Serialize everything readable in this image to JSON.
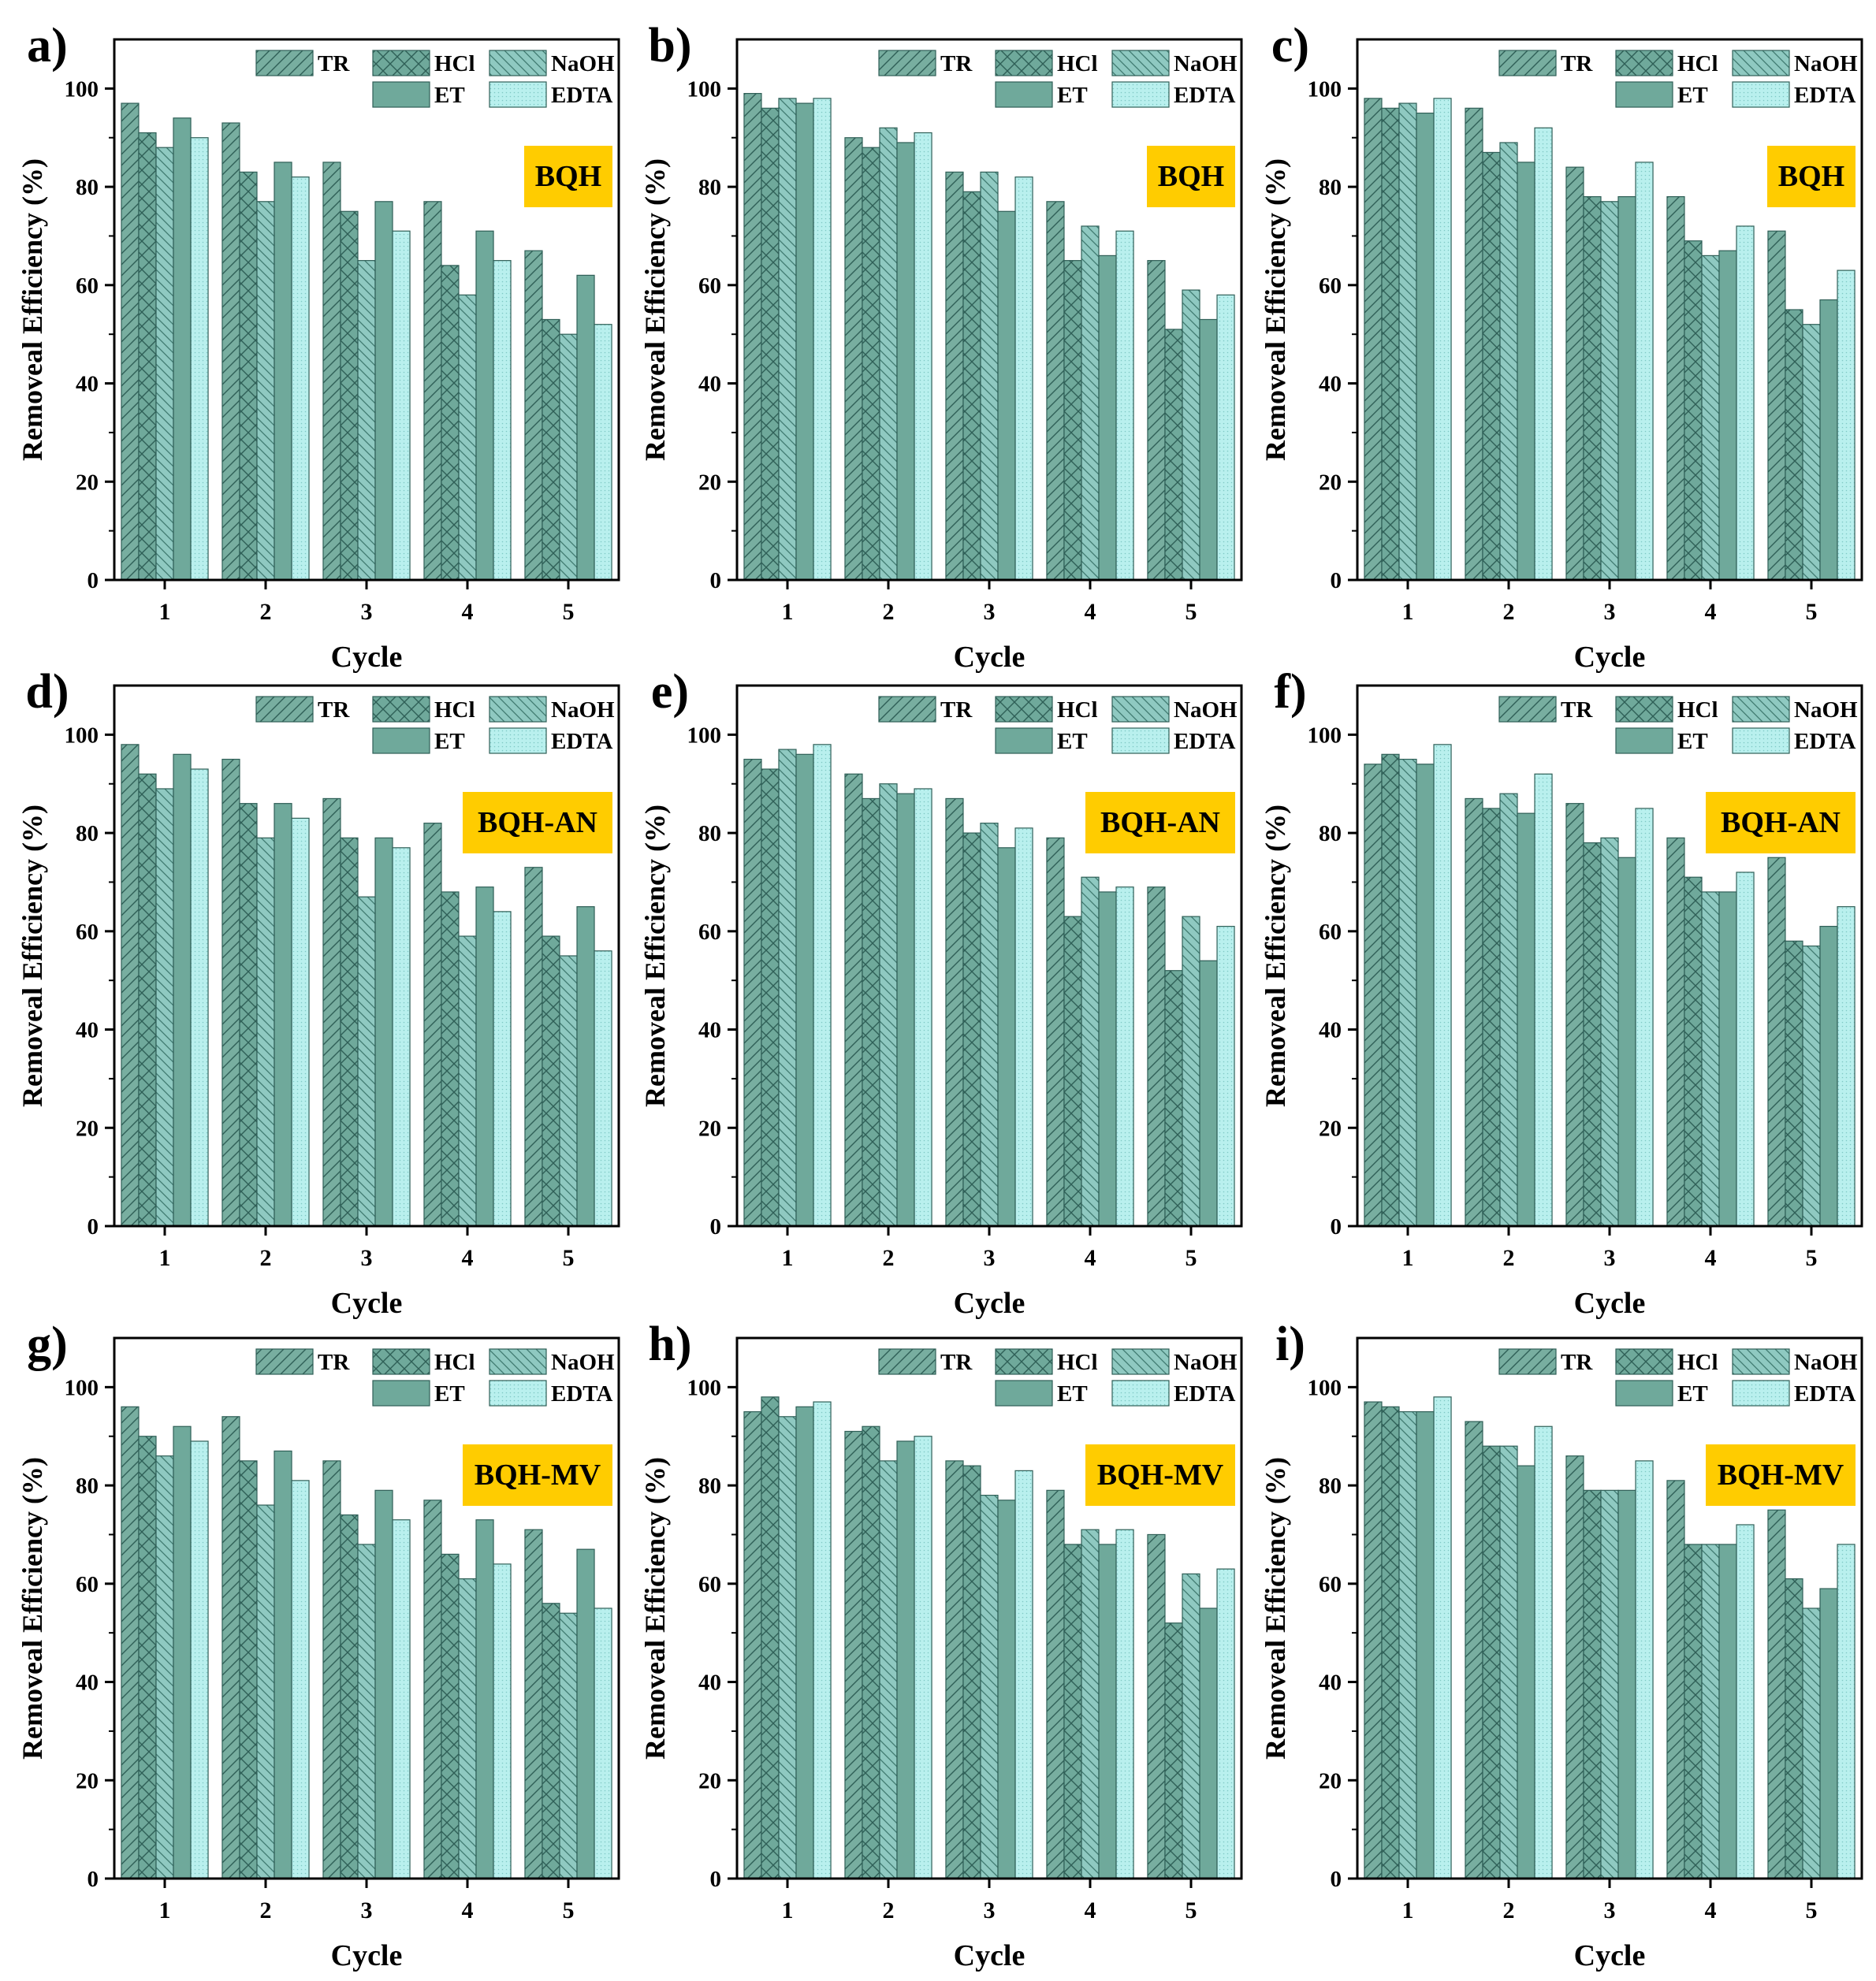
{
  "figure": {
    "series_names": [
      "TR",
      "HCl",
      "NaOH",
      "ET",
      "EDTA"
    ],
    "colors": {
      "TR": "#78aea0",
      "HCl": "#6fa99b",
      "NaOH": "#8fc9c1",
      "ET": "#6fa99b",
      "EDTA": "#b9f0ee",
      "label_box": "#ffcc00",
      "stroke": "#2f5f57"
    }
  },
  "chart_data": [
    {
      "panel_label": "a)",
      "tag": "BQH",
      "type": "bar",
      "xlabel": "Cycle",
      "ylabel": "Removeal Efficiency (%)",
      "ylim": [
        0,
        110
      ],
      "yticks": [
        0,
        20,
        40,
        60,
        80,
        100
      ],
      "categories": [
        "1",
        "2",
        "3",
        "4",
        "5"
      ],
      "series": [
        {
          "name": "TR",
          "values": [
            97,
            93,
            85,
            77,
            67
          ]
        },
        {
          "name": "HCl",
          "values": [
            91,
            83,
            75,
            64,
            53
          ]
        },
        {
          "name": "NaOH",
          "values": [
            88,
            77,
            65,
            58,
            50
          ]
        },
        {
          "name": "ET",
          "values": [
            94,
            85,
            77,
            71,
            62
          ]
        },
        {
          "name": "EDTA",
          "values": [
            90,
            82,
            71,
            65,
            52
          ]
        }
      ]
    },
    {
      "panel_label": "b)",
      "tag": "BQH",
      "type": "bar",
      "xlabel": "Cycle",
      "ylabel": "Removeal Efficiency (%)",
      "ylim": [
        0,
        110
      ],
      "yticks": [
        0,
        20,
        40,
        60,
        80,
        100
      ],
      "categories": [
        "1",
        "2",
        "3",
        "4",
        "5"
      ],
      "series": [
        {
          "name": "TR",
          "values": [
            99,
            90,
            83,
            77,
            65
          ]
        },
        {
          "name": "HCl",
          "values": [
            96,
            88,
            79,
            65,
            51
          ]
        },
        {
          "name": "NaOH",
          "values": [
            98,
            92,
            83,
            72,
            59
          ]
        },
        {
          "name": "ET",
          "values": [
            97,
            89,
            75,
            66,
            53
          ]
        },
        {
          "name": "EDTA",
          "values": [
            98,
            91,
            82,
            71,
            58
          ]
        }
      ]
    },
    {
      "panel_label": "c)",
      "tag": "BQH",
      "type": "bar",
      "xlabel": "Cycle",
      "ylabel": "Removeal Efficiency (%)",
      "ylim": [
        0,
        110
      ],
      "yticks": [
        0,
        20,
        40,
        60,
        80,
        100
      ],
      "categories": [
        "1",
        "2",
        "3",
        "4",
        "5"
      ],
      "series": [
        {
          "name": "TR",
          "values": [
            98,
            96,
            84,
            78,
            71
          ]
        },
        {
          "name": "HCl",
          "values": [
            96,
            87,
            78,
            69,
            55
          ]
        },
        {
          "name": "NaOH",
          "values": [
            97,
            89,
            77,
            66,
            52
          ]
        },
        {
          "name": "ET",
          "values": [
            95,
            85,
            78,
            67,
            57
          ]
        },
        {
          "name": "EDTA",
          "values": [
            98,
            92,
            85,
            72,
            63
          ]
        }
      ]
    },
    {
      "panel_label": "d)",
      "tag": "BQH-AN",
      "type": "bar",
      "xlabel": "Cycle",
      "ylabel": "Removeal Efficiency (%)",
      "ylim": [
        0,
        110
      ],
      "yticks": [
        0,
        20,
        40,
        60,
        80,
        100
      ],
      "categories": [
        "1",
        "2",
        "3",
        "4",
        "5"
      ],
      "series": [
        {
          "name": "TR",
          "values": [
            98,
            95,
            87,
            82,
            73
          ]
        },
        {
          "name": "HCl",
          "values": [
            92,
            86,
            79,
            68,
            59
          ]
        },
        {
          "name": "NaOH",
          "values": [
            89,
            79,
            67,
            59,
            55
          ]
        },
        {
          "name": "ET",
          "values": [
            96,
            86,
            79,
            69,
            65
          ]
        },
        {
          "name": "EDTA",
          "values": [
            93,
            83,
            77,
            64,
            56
          ]
        }
      ]
    },
    {
      "panel_label": "e)",
      "tag": "BQH-AN",
      "type": "bar",
      "xlabel": "Cycle",
      "ylabel": "Removeal Efficiency (%)",
      "ylim": [
        0,
        110
      ],
      "yticks": [
        0,
        20,
        40,
        60,
        80,
        100
      ],
      "categories": [
        "1",
        "2",
        "3",
        "4",
        "5"
      ],
      "series": [
        {
          "name": "TR",
          "values": [
            95,
            92,
            87,
            79,
            69
          ]
        },
        {
          "name": "HCl",
          "values": [
            93,
            87,
            80,
            63,
            52
          ]
        },
        {
          "name": "NaOH",
          "values": [
            97,
            90,
            82,
            71,
            63
          ]
        },
        {
          "name": "ET",
          "values": [
            96,
            88,
            77,
            68,
            54
          ]
        },
        {
          "name": "EDTA",
          "values": [
            98,
            89,
            81,
            69,
            61
          ]
        }
      ]
    },
    {
      "panel_label": "f)",
      "tag": "BQH-AN",
      "type": "bar",
      "xlabel": "Cycle",
      "ylabel": "Removeal Efficiency (%)",
      "ylim": [
        0,
        110
      ],
      "yticks": [
        0,
        20,
        40,
        60,
        80,
        100
      ],
      "categories": [
        "1",
        "2",
        "3",
        "4",
        "5"
      ],
      "series": [
        {
          "name": "TR",
          "values": [
            94,
            87,
            86,
            79,
            75
          ]
        },
        {
          "name": "HCl",
          "values": [
            96,
            85,
            78,
            71,
            58
          ]
        },
        {
          "name": "NaOH",
          "values": [
            95,
            88,
            79,
            68,
            57
          ]
        },
        {
          "name": "ET",
          "values": [
            94,
            84,
            75,
            68,
            61
          ]
        },
        {
          "name": "EDTA",
          "values": [
            98,
            92,
            85,
            72,
            65
          ]
        }
      ]
    },
    {
      "panel_label": "g)",
      "tag": "BQH-MV",
      "type": "bar",
      "xlabel": "Cycle",
      "ylabel": "Removeal Efficiency (%)",
      "ylim": [
        0,
        110
      ],
      "yticks": [
        0,
        20,
        40,
        60,
        80,
        100
      ],
      "categories": [
        "1",
        "2",
        "3",
        "4",
        "5"
      ],
      "series": [
        {
          "name": "TR",
          "values": [
            96,
            94,
            85,
            77,
            71
          ]
        },
        {
          "name": "HCl",
          "values": [
            90,
            85,
            74,
            66,
            56
          ]
        },
        {
          "name": "NaOH",
          "values": [
            86,
            76,
            68,
            61,
            54
          ]
        },
        {
          "name": "ET",
          "values": [
            92,
            87,
            79,
            73,
            67
          ]
        },
        {
          "name": "EDTA",
          "values": [
            89,
            81,
            73,
            64,
            55
          ]
        }
      ]
    },
    {
      "panel_label": "h)",
      "tag": "BQH-MV",
      "type": "bar",
      "xlabel": "Cycle",
      "ylabel": "Removeal Efficiency (%)",
      "ylim": [
        0,
        110
      ],
      "yticks": [
        0,
        20,
        40,
        60,
        80,
        100
      ],
      "categories": [
        "1",
        "2",
        "3",
        "4",
        "5"
      ],
      "series": [
        {
          "name": "TR",
          "values": [
            95,
            91,
            85,
            79,
            70
          ]
        },
        {
          "name": "HCl",
          "values": [
            98,
            92,
            84,
            68,
            52
          ]
        },
        {
          "name": "NaOH",
          "values": [
            94,
            85,
            78,
            71,
            62
          ]
        },
        {
          "name": "ET",
          "values": [
            96,
            89,
            77,
            68,
            55
          ]
        },
        {
          "name": "EDTA",
          "values": [
            97,
            90,
            83,
            71,
            63
          ]
        }
      ]
    },
    {
      "panel_label": "i)",
      "tag": "BQH-MV",
      "type": "bar",
      "xlabel": "Cycle",
      "ylabel": "Removeal Efficiency (%)",
      "ylim": [
        0,
        110
      ],
      "yticks": [
        0,
        20,
        40,
        60,
        80,
        100
      ],
      "categories": [
        "1",
        "2",
        "3",
        "4",
        "5"
      ],
      "series": [
        {
          "name": "TR",
          "values": [
            97,
            93,
            86,
            81,
            75
          ]
        },
        {
          "name": "HCl",
          "values": [
            96,
            88,
            79,
            68,
            61
          ]
        },
        {
          "name": "NaOH",
          "values": [
            95,
            88,
            79,
            68,
            55
          ]
        },
        {
          "name": "ET",
          "values": [
            95,
            84,
            79,
            68,
            59
          ]
        },
        {
          "name": "EDTA",
          "values": [
            98,
            92,
            85,
            72,
            68
          ]
        }
      ]
    }
  ]
}
